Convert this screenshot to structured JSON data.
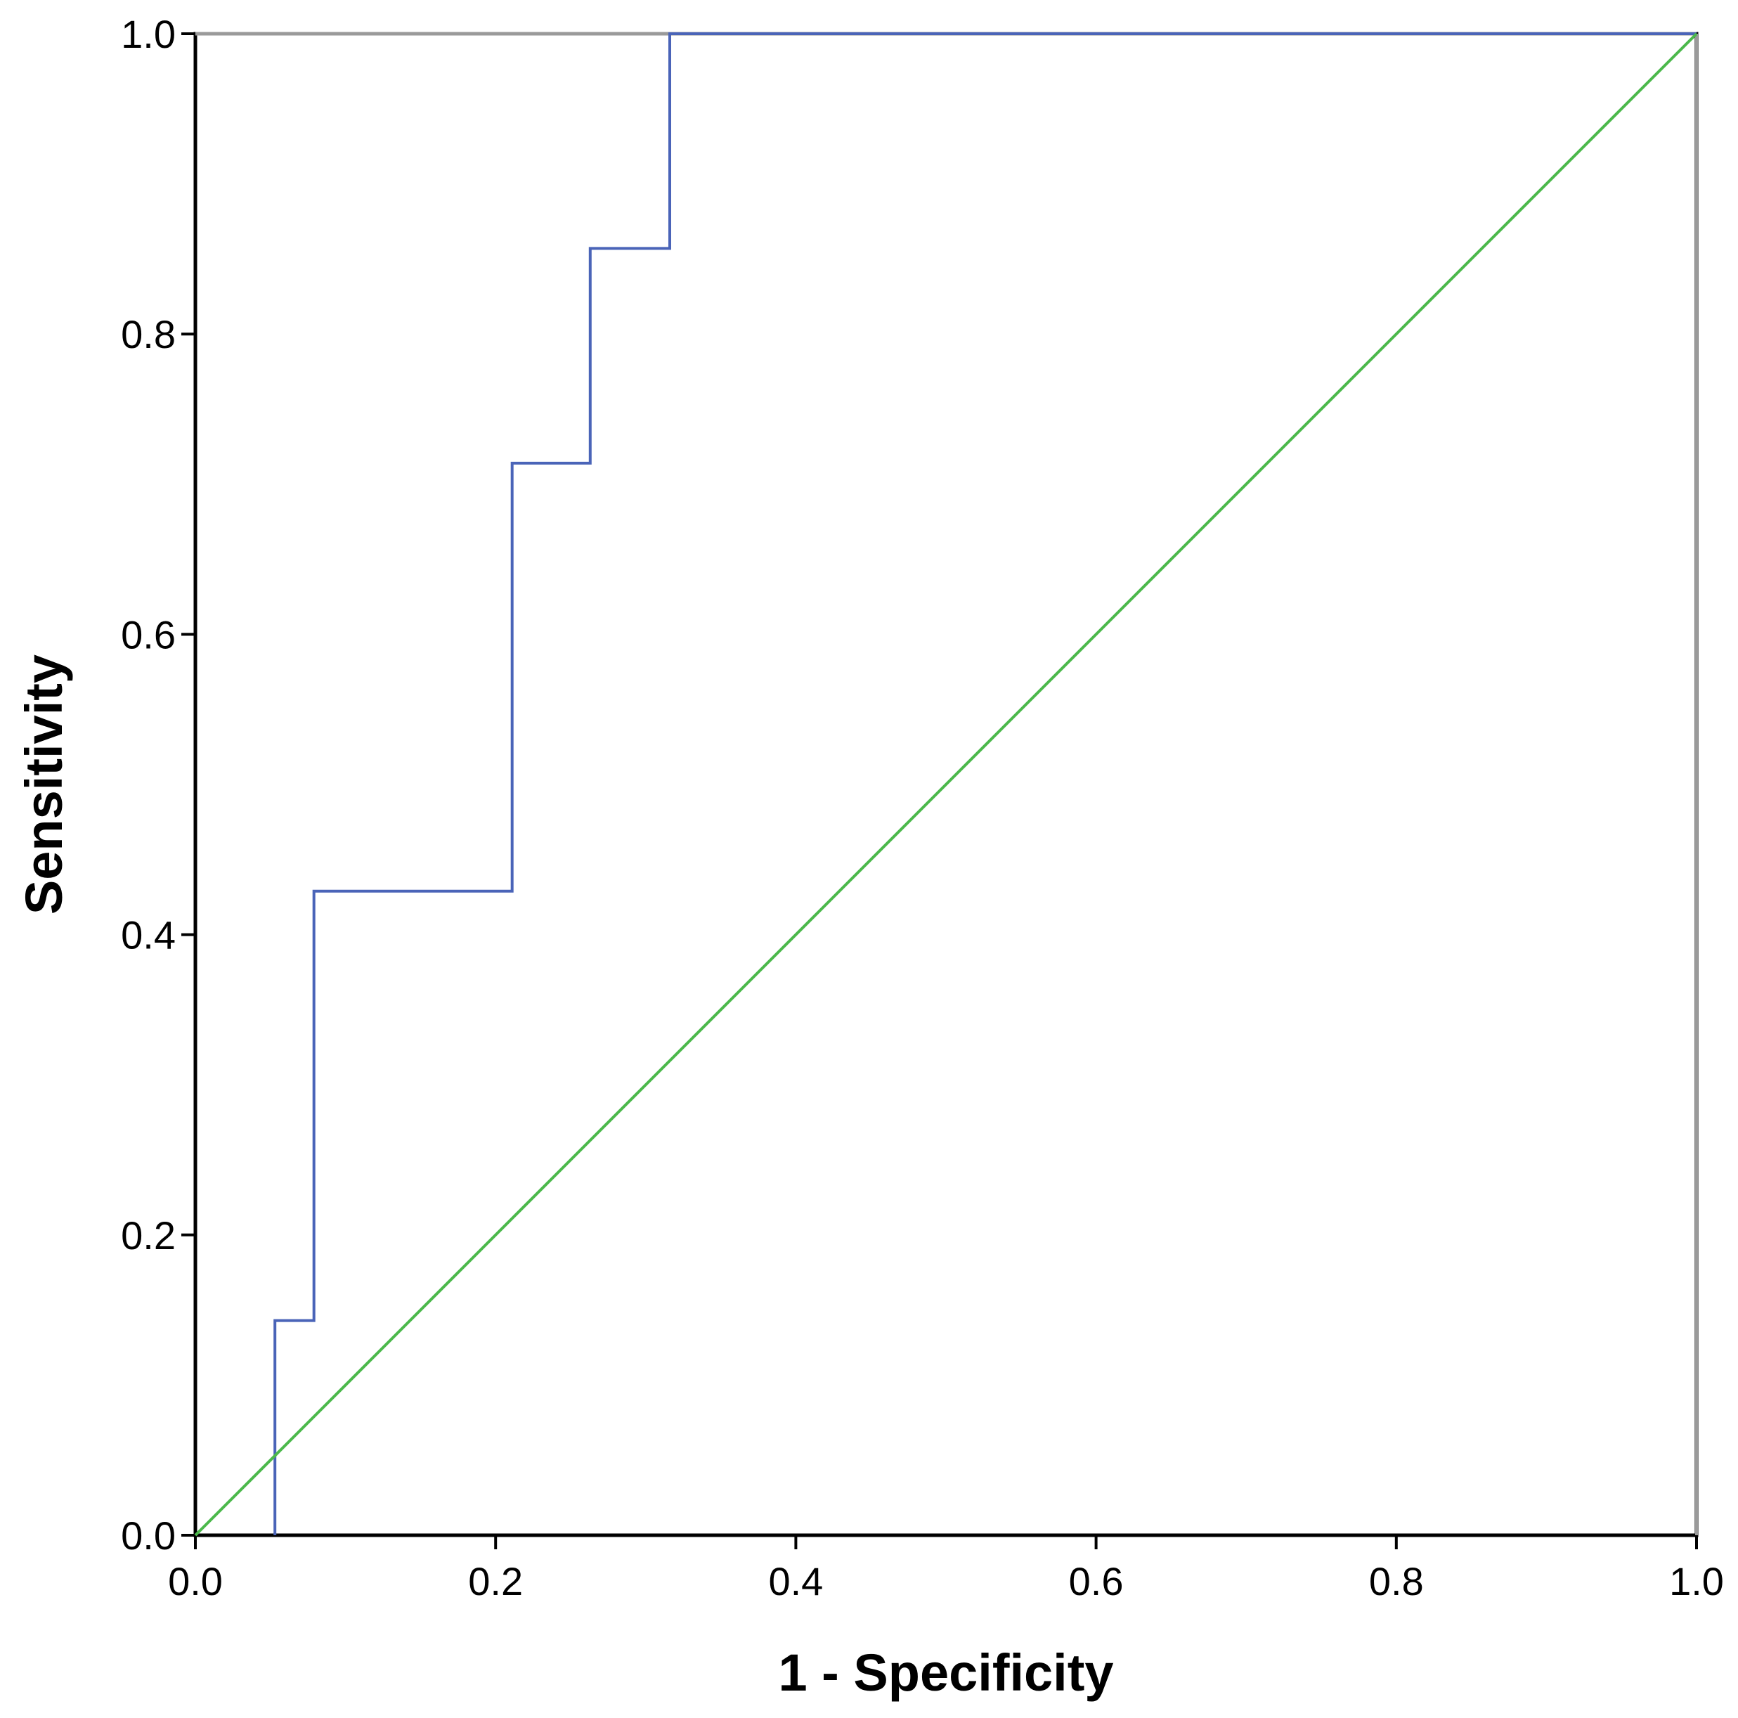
{
  "chart_data": {
    "type": "line",
    "title": "",
    "xlabel": "1 - Specificity",
    "ylabel": "Sensitivity",
    "xlim": [
      0.0,
      1.0
    ],
    "ylim": [
      0.0,
      1.0
    ],
    "x_ticks": [
      "0.0",
      "0.2",
      "0.4",
      "0.6",
      "0.8",
      "1.0"
    ],
    "y_ticks": [
      "0.0",
      "0.2",
      "0.4",
      "0.6",
      "0.8",
      "1.0"
    ],
    "grid": false,
    "legend": "none",
    "series": [
      {
        "points": [
          [
            0.053,
            0.0
          ],
          [
            0.053,
            0.143
          ],
          [
            0.079,
            0.143
          ],
          [
            0.079,
            0.429
          ],
          [
            0.211,
            0.429
          ],
          [
            0.211,
            0.714
          ],
          [
            0.263,
            0.714
          ],
          [
            0.263,
            0.857
          ],
          [
            0.316,
            0.857
          ],
          [
            0.316,
            1.0
          ],
          [
            1.0,
            1.0
          ]
        ],
        "color": "#4a64b8"
      },
      {
        "points": [
          [
            0.0,
            0.0
          ],
          [
            1.0,
            1.0
          ]
        ],
        "color": "#4bb84b"
      }
    ]
  }
}
